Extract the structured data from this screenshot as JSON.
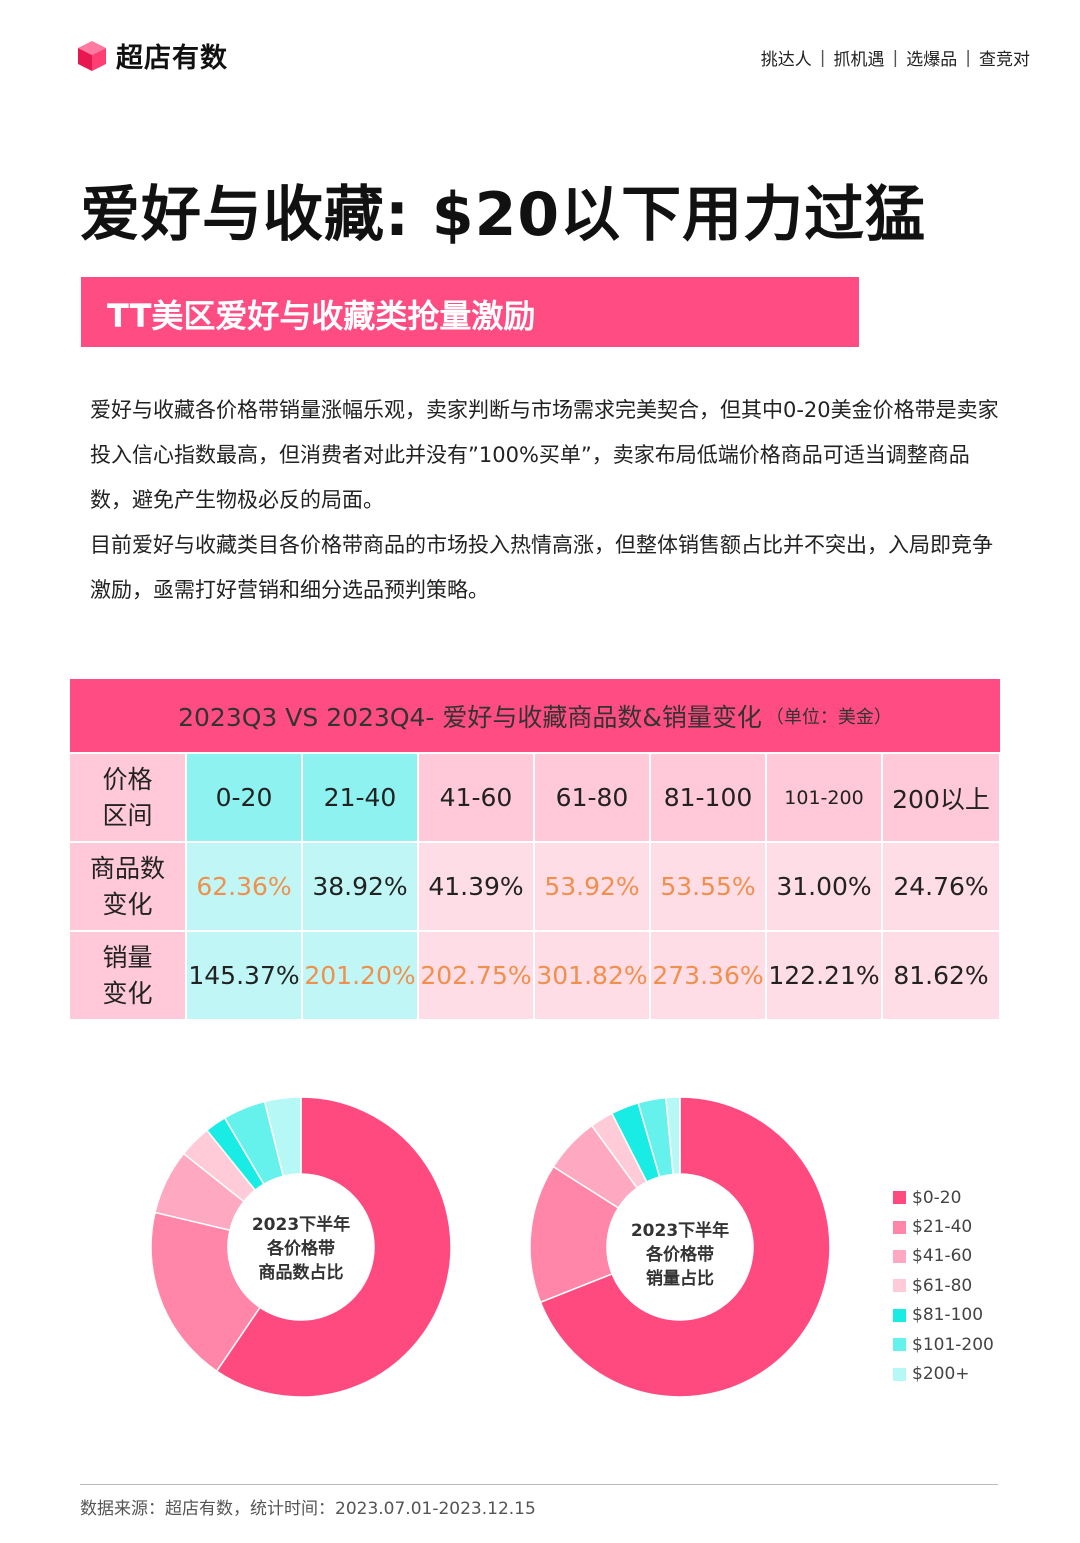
{
  "header": {
    "logo_text": "超店有数",
    "nav": [
      "挑达人",
      "抓机遇",
      "选爆品",
      "查竞对"
    ],
    "nav_separator": "|"
  },
  "title": "爱好与收藏: $20以下用力过猛",
  "banner": "TT美区爱好与收藏类抢量激励",
  "paragraphs": [
    "爱好与收藏各价格带销量涨幅乐观，卖家判断与市场需求完美契合，但其中0-20美金价格带是卖家投入信心指数最高，但消费者对此并没有”100%买单”，卖家布局低端价格商品可适当调整商品数，避免产生物极必反的局面。",
    "目前爱好与收藏类目各价格带商品的市场投入热情高涨，但整体销售额占比并不突出，入局即竞争激励，亟需打好营销和细分选品预判策略。"
  ],
  "table": {
    "title": "2023Q3 VS 2023Q4- 爱好与收藏商品数&销量变化",
    "unit": "（单位：美金）",
    "row_headers": [
      [
        "价格",
        "区间"
      ],
      [
        "商品数",
        "变化"
      ],
      [
        "销量",
        "变化"
      ]
    ],
    "columns": [
      "0-20",
      "21-40",
      "41-60",
      "61-80",
      "81-100",
      "101-200",
      "200以上"
    ],
    "product_change": [
      "62.36%",
      "38.92%",
      "41.39%",
      "53.92%",
      "53.55%",
      "31.00%",
      "24.76%"
    ],
    "product_highlight": [
      true,
      false,
      false,
      true,
      true,
      false,
      false
    ],
    "sales_change": [
      "145.37%",
      "201.20%",
      "202.75%",
      "301.82%",
      "273.36%",
      "122.21%",
      "81.62%"
    ],
    "sales_highlight": [
      false,
      true,
      true,
      true,
      true,
      false,
      false
    ]
  },
  "chart_data": [
    {
      "type": "pie",
      "center_label": [
        "2023下半年",
        "各价格带",
        "商品数占比"
      ],
      "categories": [
        "$0-20",
        "$21-40",
        "$41-60",
        "$61-80",
        "$81-100",
        "$101-200",
        "$200+"
      ],
      "values": [
        59.5,
        19.2,
        7.0,
        3.5,
        2.3,
        4.6,
        3.9
      ]
    },
    {
      "type": "pie",
      "center_label": [
        "2023下半年",
        "各价格带",
        "销量占比"
      ],
      "categories": [
        "$0-20",
        "$21-40",
        "$41-60",
        "$61-80",
        "$81-100",
        "$101-200",
        "$200+"
      ],
      "values": [
        69.0,
        15.0,
        6.0,
        2.5,
        3.0,
        3.0,
        1.5
      ]
    }
  ],
  "legend": {
    "items": [
      "$0-20",
      "$21-40",
      "$41-60",
      "$61-80",
      "$81-100",
      "$101-200",
      "$200+"
    ],
    "colors": [
      "#ff4a80",
      "#ff86a8",
      "#ffa8c2",
      "#ffcbd9",
      "#19ece4",
      "#66f2ec",
      "#b6f8f5"
    ]
  },
  "footer": "数据来源：超店有数，统计时间：2023.07.01-2023.12.15"
}
